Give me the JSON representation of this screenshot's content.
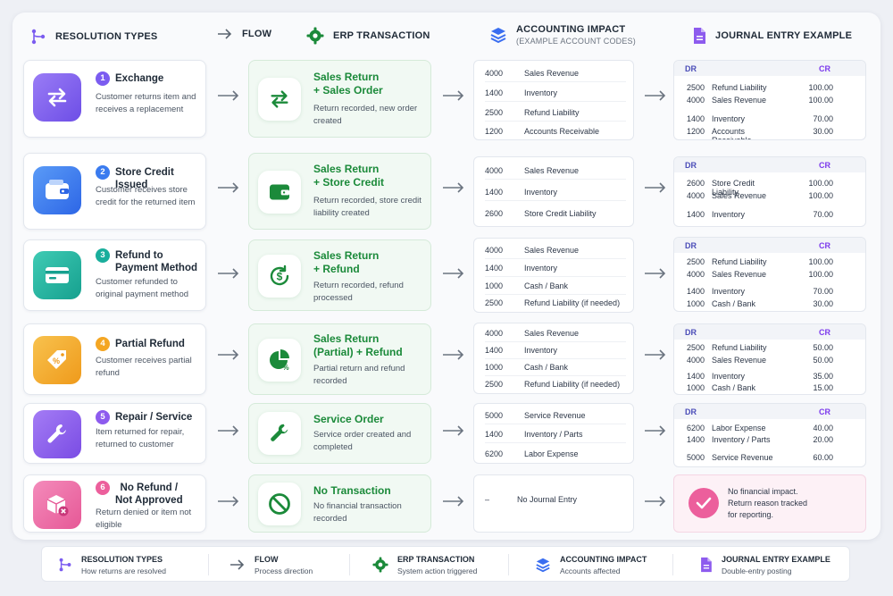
{
  "headers": {
    "resolution": "RESOLUTION TYPES",
    "flow": "FLOW",
    "erp": "ERP TRANSACTION",
    "accounting": "ACCOUNTING IMPACT",
    "accounting_sub": "(EXAMPLE ACCOUNT CODES)",
    "journal": "JOURNAL ENTRY EXAMPLE"
  },
  "journal_columns": {
    "dr": "DR",
    "cr": "CR"
  },
  "rows": [
    {
      "num": "1",
      "title": "Exchange",
      "desc": "Customer returns item and receives a replacement",
      "erp_title": "Sales Return\n+ Sales Order",
      "erp_desc": "Return recorded, new order created",
      "accounts": [
        {
          "code": "4000",
          "name": "Sales Revenue"
        },
        {
          "code": "1400",
          "name": "Inventory"
        },
        {
          "code": "2500",
          "name": "Refund Liability"
        },
        {
          "code": "1200",
          "name": "Accounts Receivable"
        }
      ],
      "journal": [
        {
          "code": "2500",
          "name": "Refund Liability",
          "amt": "100.00"
        },
        {
          "code": "4000",
          "name": "Sales Revenue",
          "amt": "100.00"
        },
        {
          "code": "1400",
          "name": "Inventory",
          "amt": "70.00"
        },
        {
          "code": "1200",
          "name": "Accounts Receivable",
          "amt": "30.00"
        }
      ]
    },
    {
      "num": "2",
      "title": "Store Credit Issued",
      "desc": "Customer receives store credit for the returned item",
      "erp_title": "Sales Return\n+ Store Credit",
      "erp_desc": "Return recorded, store credit liability created",
      "accounts": [
        {
          "code": "4000",
          "name": "Sales Revenue"
        },
        {
          "code": "1400",
          "name": "Inventory"
        },
        {
          "code": "2600",
          "name": "Store Credit Liability"
        }
      ],
      "journal": [
        {
          "code": "2600",
          "name": "Store Credit Liability",
          "amt": "100.00"
        },
        {
          "code": "4000",
          "name": "Sales Revenue",
          "amt": "100.00"
        },
        {
          "code": "1400",
          "name": "Inventory",
          "amt": "70.00"
        }
      ]
    },
    {
      "num": "3",
      "title": "Refund to Payment Method",
      "desc": "Customer refunded to original payment method",
      "erp_title": "Sales Return\n+ Refund",
      "erp_desc": "Return recorded, refund processed",
      "accounts": [
        {
          "code": "4000",
          "name": "Sales Revenue"
        },
        {
          "code": "1400",
          "name": "Inventory"
        },
        {
          "code": "1000",
          "name": "Cash / Bank"
        },
        {
          "code": "2500",
          "name": "Refund Liability (if needed)"
        }
      ],
      "journal": [
        {
          "code": "2500",
          "name": "Refund Liability",
          "amt": "100.00"
        },
        {
          "code": "4000",
          "name": "Sales Revenue",
          "amt": "100.00"
        },
        {
          "code": "1400",
          "name": "Inventory",
          "amt": "70.00"
        },
        {
          "code": "1000",
          "name": "Cash / Bank",
          "amt": "30.00"
        }
      ]
    },
    {
      "num": "4",
      "title": "Partial Refund",
      "desc": "Customer receives partial refund",
      "erp_title": "Sales Return\n(Partial) + Refund",
      "erp_desc": "Partial return and refund recorded",
      "accounts": [
        {
          "code": "4000",
          "name": "Sales Revenue"
        },
        {
          "code": "1400",
          "name": "Inventory"
        },
        {
          "code": "1000",
          "name": "Cash / Bank"
        },
        {
          "code": "2500",
          "name": "Refund Liability (if needed)"
        }
      ],
      "journal": [
        {
          "code": "2500",
          "name": "Refund Liability",
          "amt": "50.00"
        },
        {
          "code": "4000",
          "name": "Sales Revenue",
          "amt": "50.00"
        },
        {
          "code": "1400",
          "name": "Inventory",
          "amt": "35.00"
        },
        {
          "code": "1000",
          "name": "Cash / Bank",
          "amt": "15.00"
        }
      ]
    },
    {
      "num": "5",
      "title": "Repair / Service",
      "desc": "Item returned for repair, returned to customer",
      "erp_title": "Service Order",
      "erp_desc": "Service order created and completed",
      "accounts": [
        {
          "code": "5000",
          "name": "Service Revenue"
        },
        {
          "code": "1400",
          "name": "Inventory / Parts"
        },
        {
          "code": "6200",
          "name": "Labor Expense"
        }
      ],
      "journal": [
        {
          "code": "6200",
          "name": "Labor Expense",
          "amt": "40.00"
        },
        {
          "code": "1400",
          "name": "Inventory / Parts",
          "amt": "20.00"
        },
        {
          "code": "5000",
          "name": "Service Revenue",
          "amt": "60.00"
        }
      ]
    },
    {
      "num": "6",
      "title": "No Refund /\nNot Approved",
      "desc": "Return denied or item not eligible",
      "erp_title": "No Transaction",
      "erp_desc": "No financial transaction recorded",
      "no_entry_dash": "–",
      "no_entry_text": "No Journal Entry",
      "impact_text": "No financial impact.\nReturn reason tracked\nfor reporting."
    }
  ],
  "footer": [
    {
      "title": "RESOLUTION TYPES",
      "sub": "How returns are resolved"
    },
    {
      "title": "FLOW",
      "sub": "Process direction"
    },
    {
      "title": "ERP TRANSACTION",
      "sub": "System action triggered"
    },
    {
      "title": "ACCOUNTING IMPACT",
      "sub": "Accounts affected"
    },
    {
      "title": "JOURNAL ENTRY EXAMPLE",
      "sub": "Double-entry posting"
    }
  ],
  "colors": {
    "exchange": "#7b5cf0",
    "store_credit": "#3a7bef",
    "refund": "#1aae9c",
    "partial": "#f4a623",
    "repair": "#8d5bee",
    "no_refund": "#ec5f9c",
    "erp_green": "#1b8a3a",
    "journal_purple": "#7c3aed"
  }
}
